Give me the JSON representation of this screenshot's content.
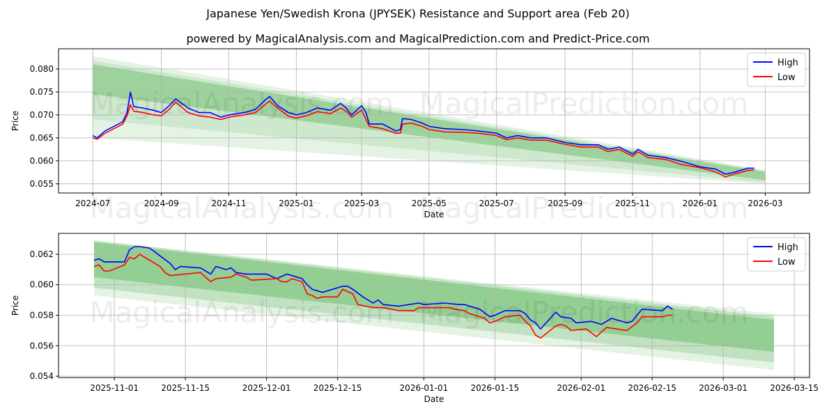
{
  "title": "Japanese Yen/Swedish Krona (JPYSEK) Resistance and Support area (Feb 20)",
  "subtitle": "powered by MagicalAnalysis.com and MagicalPrediction.com and Predict-Price.com",
  "watermarks": [
    "MagicalAnalysis.com",
    "MagicalPrediction.com"
  ],
  "colors": {
    "high": "#0000ff",
    "low": "#ff0000",
    "band": "#2ca02c"
  },
  "chart_data": [
    {
      "type": "line",
      "xlabel": "Date",
      "ylabel": "Price",
      "xlim": [
        "2024-05-31",
        "2026-04-10"
      ],
      "ylim": [
        0.053,
        0.0844
      ],
      "grid": true,
      "legend": "top-right",
      "xticks": [
        "2024-07",
        "2024-09",
        "2024-11",
        "2025-01",
        "2025-03",
        "2025-05",
        "2025-07",
        "2025-09",
        "2025-11",
        "2026-01",
        "2026-03"
      ],
      "yticks": [
        "0.055",
        "0.060",
        "0.065",
        "0.070",
        "0.075",
        "0.080"
      ],
      "bands": [
        {
          "x": [
            "2024-07-01",
            "2026-03-01"
          ],
          "upper": [
            0.0828,
            0.058
          ],
          "lower": [
            0.065,
            0.055
          ],
          "opacity": 0.12
        },
        {
          "x": [
            "2024-07-01",
            "2026-03-01"
          ],
          "upper": [
            0.0818,
            0.0578
          ],
          "lower": [
            0.069,
            0.0553
          ],
          "opacity": 0.12
        },
        {
          "x": [
            "2024-07-01",
            "2026-03-01"
          ],
          "upper": [
            0.081,
            0.0576
          ],
          "lower": [
            0.0745,
            0.0558
          ],
          "opacity": 0.3
        }
      ],
      "series": [
        {
          "name": "High",
          "x": [
            "2024-07-01",
            "2024-07-05",
            "2024-07-12",
            "2024-07-20",
            "2024-07-28",
            "2024-08-01",
            "2024-08-04",
            "2024-08-07",
            "2024-08-15",
            "2024-08-25",
            "2024-09-01",
            "2024-09-08",
            "2024-09-14",
            "2024-09-25",
            "2024-10-05",
            "2024-10-15",
            "2024-10-25",
            "2024-11-01",
            "2024-11-15",
            "2024-11-25",
            "2024-12-05",
            "2024-12-08",
            "2024-12-15",
            "2024-12-25",
            "2025-01-01",
            "2025-01-10",
            "2025-01-20",
            "2025-02-01",
            "2025-02-10",
            "2025-02-15",
            "2025-02-20",
            "2025-03-01",
            "2025-03-05",
            "2025-03-08",
            "2025-03-20",
            "2025-04-01",
            "2025-04-05",
            "2025-04-07",
            "2025-04-15",
            "2025-04-25",
            "2025-05-01",
            "2025-05-15",
            "2025-06-01",
            "2025-06-15",
            "2025-07-01",
            "2025-07-10",
            "2025-07-20",
            "2025-08-01",
            "2025-08-15",
            "2025-09-01",
            "2025-09-15",
            "2025-10-01",
            "2025-10-10",
            "2025-10-20",
            "2025-11-01",
            "2025-11-06",
            "2025-11-15",
            "2025-12-01",
            "2025-12-15",
            "2026-01-01",
            "2026-01-15",
            "2026-01-24",
            "2026-02-01",
            "2026-02-13",
            "2026-02-19"
          ],
          "values": [
            0.0655,
            0.065,
            0.0665,
            0.0675,
            0.0685,
            0.0705,
            0.075,
            0.0718,
            0.0715,
            0.071,
            0.0705,
            0.072,
            0.0735,
            0.0715,
            0.0705,
            0.0705,
            0.0695,
            0.07,
            0.0705,
            0.0712,
            0.0735,
            0.074,
            0.072,
            0.0705,
            0.07,
            0.0705,
            0.0715,
            0.071,
            0.0725,
            0.0715,
            0.07,
            0.072,
            0.0705,
            0.068,
            0.068,
            0.0665,
            0.0668,
            0.0692,
            0.069,
            0.0682,
            0.0675,
            0.067,
            0.0668,
            0.0665,
            0.066,
            0.065,
            0.0655,
            0.065,
            0.065,
            0.064,
            0.0635,
            0.0635,
            0.0625,
            0.063,
            0.0615,
            0.0625,
            0.0612,
            0.0607,
            0.0599,
            0.0587,
            0.0582,
            0.0571,
            0.0575,
            0.0584,
            0.0584
          ]
        },
        {
          "name": "Low",
          "x": [
            "2024-07-01",
            "2024-07-05",
            "2024-07-12",
            "2024-07-20",
            "2024-07-28",
            "2024-08-01",
            "2024-08-04",
            "2024-08-07",
            "2024-08-15",
            "2024-08-25",
            "2024-09-01",
            "2024-09-08",
            "2024-09-14",
            "2024-09-25",
            "2024-10-05",
            "2024-10-15",
            "2024-10-25",
            "2024-11-01",
            "2024-11-15",
            "2024-11-25",
            "2024-12-05",
            "2024-12-08",
            "2024-12-15",
            "2024-12-25",
            "2025-01-01",
            "2025-01-10",
            "2025-01-20",
            "2025-02-01",
            "2025-02-10",
            "2025-02-15",
            "2025-02-20",
            "2025-03-01",
            "2025-03-05",
            "2025-03-08",
            "2025-03-20",
            "2025-04-01",
            "2025-04-05",
            "2025-04-07",
            "2025-04-15",
            "2025-04-25",
            "2025-05-01",
            "2025-05-15",
            "2025-06-01",
            "2025-06-15",
            "2025-07-01",
            "2025-07-10",
            "2025-07-20",
            "2025-08-01",
            "2025-08-15",
            "2025-09-01",
            "2025-09-15",
            "2025-10-01",
            "2025-10-10",
            "2025-10-20",
            "2025-11-01",
            "2025-11-06",
            "2025-11-15",
            "2025-12-01",
            "2025-12-15",
            "2026-01-01",
            "2026-01-15",
            "2026-01-24",
            "2026-02-01",
            "2026-02-13",
            "2026-02-19"
          ],
          "values": [
            0.065,
            0.0647,
            0.066,
            0.067,
            0.068,
            0.0698,
            0.0722,
            0.0708,
            0.0705,
            0.07,
            0.0698,
            0.0712,
            0.0728,
            0.0705,
            0.0698,
            0.0695,
            0.069,
            0.0695,
            0.07,
            0.0705,
            0.0725,
            0.073,
            0.0715,
            0.0697,
            0.0693,
            0.0698,
            0.0707,
            0.0703,
            0.0715,
            0.0708,
            0.0695,
            0.071,
            0.069,
            0.0675,
            0.067,
            0.066,
            0.066,
            0.068,
            0.0682,
            0.0675,
            0.0668,
            0.0663,
            0.0662,
            0.066,
            0.0655,
            0.0646,
            0.065,
            0.0645,
            0.0645,
            0.0636,
            0.063,
            0.063,
            0.062,
            0.0625,
            0.061,
            0.062,
            0.0607,
            0.0603,
            0.0592,
            0.0585,
            0.0576,
            0.0565,
            0.0571,
            0.0579,
            0.058
          ]
        }
      ]
    },
    {
      "type": "line",
      "xlabel": "Date",
      "ylabel": "Price",
      "xlim": [
        "2025-10-21",
        "2026-03-18"
      ],
      "ylim": [
        0.05391,
        0.06337
      ],
      "grid": true,
      "legend": "top-right",
      "xticks": [
        "2025-11-01",
        "2025-11-15",
        "2025-12-01",
        "2025-12-15",
        "2026-01-01",
        "2026-01-15",
        "2026-02-01",
        "2026-02-15",
        "2026-03-01",
        "2026-03-15"
      ],
      "yticks": [
        "0.054",
        "0.056",
        "0.058",
        "0.060",
        "0.062"
      ],
      "bands": [
        {
          "x": [
            "2025-10-28",
            "2026-03-11"
          ],
          "upper": [
            0.0629,
            0.0581
          ],
          "lower": [
            0.0593,
            0.0544
          ],
          "opacity": 0.12
        },
        {
          "x": [
            "2025-10-28",
            "2026-03-11"
          ],
          "upper": [
            0.0629,
            0.0579
          ],
          "lower": [
            0.0598,
            0.0549
          ],
          "opacity": 0.2
        },
        {
          "x": [
            "2025-10-28",
            "2026-03-11"
          ],
          "upper": [
            0.0628,
            0.0577
          ],
          "lower": [
            0.0605,
            0.0556
          ],
          "opacity": 0.3
        }
      ],
      "series": [
        {
          "name": "High",
          "x": [
            "2025-10-28",
            "2025-10-29",
            "2025-10-30",
            "2025-11-03",
            "2025-11-04",
            "2025-11-05",
            "2025-11-06",
            "2025-11-08",
            "2025-11-10",
            "2025-11-12",
            "2025-11-13",
            "2025-11-14",
            "2025-11-18",
            "2025-11-20",
            "2025-11-21",
            "2025-11-23",
            "2025-11-24",
            "2025-11-25",
            "2025-11-27",
            "2025-12-01",
            "2025-12-03",
            "2025-12-05",
            "2025-12-08",
            "2025-12-09",
            "2025-12-10",
            "2025-12-12",
            "2025-12-16",
            "2025-12-17",
            "2025-12-18",
            "2025-12-20",
            "2025-12-22",
            "2025-12-23",
            "2025-12-24",
            "2025-12-27",
            "2025-12-31",
            "2026-01-01",
            "2026-01-05",
            "2026-01-08",
            "2026-01-09",
            "2026-01-12",
            "2026-01-14",
            "2026-01-15",
            "2026-01-17",
            "2026-01-20",
            "2026-01-21",
            "2026-01-22",
            "2026-01-23",
            "2026-01-24",
            "2026-01-27",
            "2026-01-28",
            "2026-01-30",
            "2026-01-31",
            "2026-02-03",
            "2026-02-05",
            "2026-02-07",
            "2026-02-08",
            "2026-02-10",
            "2026-02-11",
            "2026-02-13",
            "2026-02-17",
            "2026-02-18",
            "2026-02-19"
          ],
          "values": [
            0.0616,
            0.0617,
            0.0615,
            0.0615,
            0.0623,
            0.0625,
            0.0625,
            0.0624,
            0.0619,
            0.0614,
            0.061,
            0.0612,
            0.0611,
            0.0607,
            0.0612,
            0.061,
            0.0611,
            0.0608,
            0.0607,
            0.0607,
            0.0604,
            0.0607,
            0.0604,
            0.06,
            0.0597,
            0.0595,
            0.0599,
            0.0599,
            0.0597,
            0.0592,
            0.0588,
            0.059,
            0.0587,
            0.0586,
            0.0588,
            0.0587,
            0.0588,
            0.0587,
            0.0587,
            0.0584,
            0.0579,
            0.058,
            0.0583,
            0.0583,
            0.0581,
            0.0577,
            0.0575,
            0.0571,
            0.0582,
            0.0579,
            0.0578,
            0.0575,
            0.0576,
            0.0574,
            0.0578,
            0.0577,
            0.0575,
            0.0576,
            0.0584,
            0.0583,
            0.0586,
            0.0584
          ]
        },
        {
          "name": "Low",
          "x": [
            "2025-10-28",
            "2025-10-29",
            "2025-10-30",
            "2025-10-31",
            "2025-11-03",
            "2025-11-04",
            "2025-11-05",
            "2025-11-06",
            "2025-11-10",
            "2025-11-11",
            "2025-11-12",
            "2025-11-18",
            "2025-11-19",
            "2025-11-20",
            "2025-11-21",
            "2025-11-24",
            "2025-11-25",
            "2025-11-27",
            "2025-11-28",
            "2025-12-03",
            "2025-12-04",
            "2025-12-05",
            "2025-12-06",
            "2025-12-08",
            "2025-12-09",
            "2025-12-10",
            "2025-12-11",
            "2025-12-12",
            "2025-12-15",
            "2025-12-16",
            "2025-12-18",
            "2025-12-19",
            "2025-12-22",
            "2025-12-24",
            "2025-12-27",
            "2025-12-30",
            "2025-12-31",
            "2026-01-05",
            "2026-01-06",
            "2026-01-07",
            "2026-01-09",
            "2026-01-10",
            "2026-01-13",
            "2026-01-14",
            "2026-01-15",
            "2026-01-17",
            "2026-01-20",
            "2026-01-21",
            "2026-01-22",
            "2026-01-23",
            "2026-01-24",
            "2026-01-27",
            "2026-01-28",
            "2026-01-29",
            "2026-01-30",
            "2026-02-02",
            "2026-02-04",
            "2026-02-06",
            "2026-02-08",
            "2026-02-10",
            "2026-02-12",
            "2026-02-13",
            "2026-02-17",
            "2026-02-18",
            "2026-02-19"
          ],
          "values": [
            0.0612,
            0.0613,
            0.0609,
            0.0609,
            0.0613,
            0.0618,
            0.0617,
            0.062,
            0.0612,
            0.0608,
            0.0606,
            0.0608,
            0.0605,
            0.0602,
            0.0604,
            0.0605,
            0.0607,
            0.0605,
            0.0603,
            0.0604,
            0.0602,
            0.0602,
            0.0604,
            0.0602,
            0.0594,
            0.0593,
            0.0591,
            0.0592,
            0.0592,
            0.0597,
            0.0594,
            0.0587,
            0.0585,
            0.0585,
            0.0583,
            0.0583,
            0.0585,
            0.0585,
            0.0585,
            0.0584,
            0.0583,
            0.0581,
            0.0578,
            0.0575,
            0.0576,
            0.0579,
            0.058,
            0.0576,
            0.0573,
            0.0567,
            0.0565,
            0.0573,
            0.0574,
            0.0573,
            0.057,
            0.0571,
            0.0566,
            0.0572,
            0.0571,
            0.057,
            0.0575,
            0.0579,
            0.0579,
            0.058,
            0.058
          ]
        }
      ]
    }
  ]
}
